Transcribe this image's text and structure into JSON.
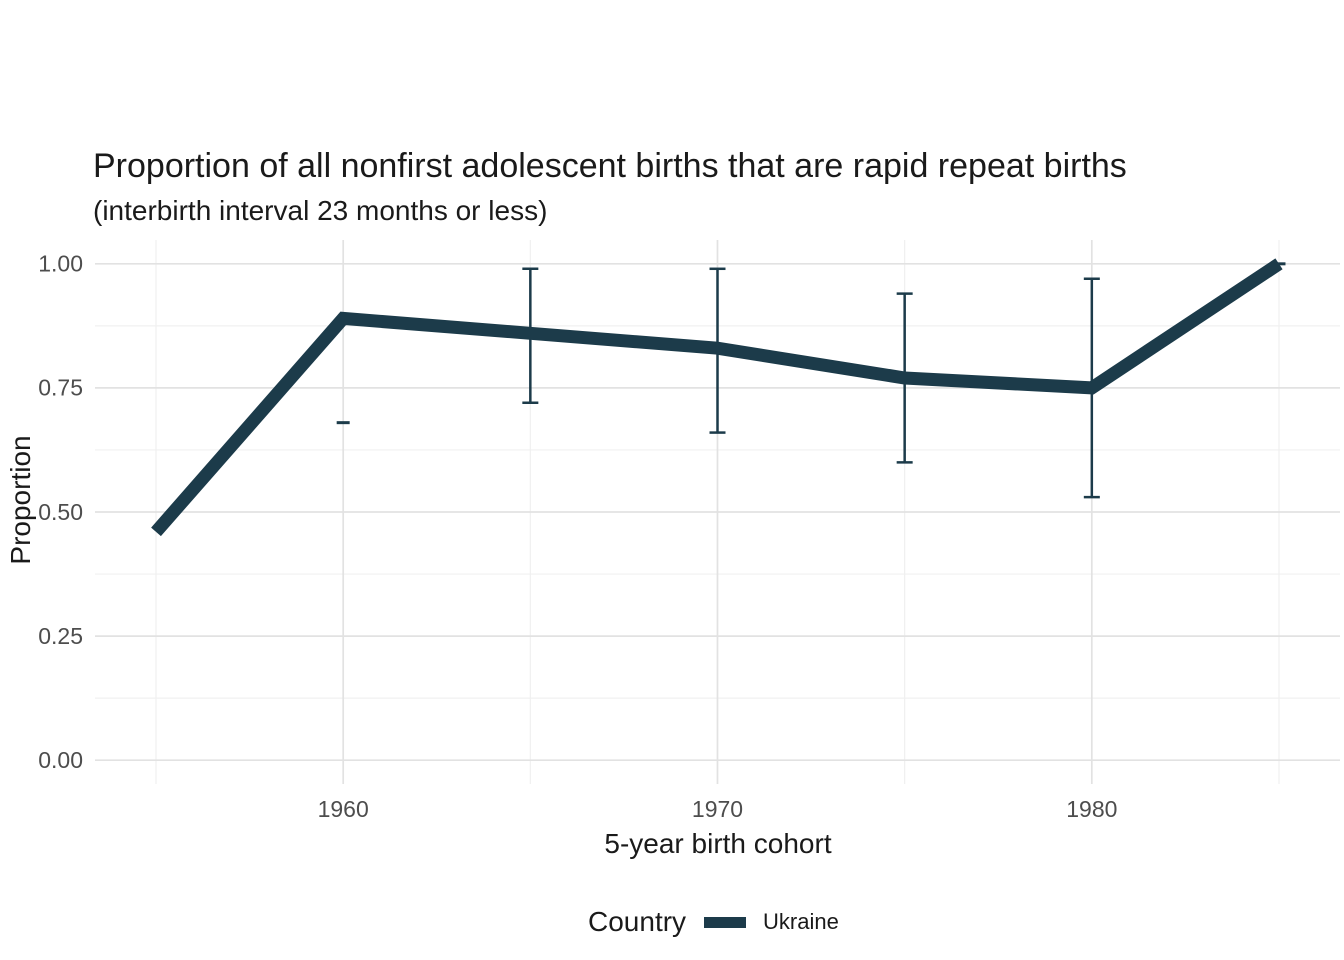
{
  "chart_data": {
    "type": "line",
    "title": "Proportion of all nonfirst adolescent births that are rapid repeat births",
    "subtitle": "(interbirth interval 23 months or less)",
    "xlabel": "5-year birth cohort",
    "ylabel": "Proportion",
    "legend": {
      "title": "Country",
      "position": "bottom",
      "items": [
        {
          "label": "Ukraine",
          "color": "#1C3B4A"
        }
      ]
    },
    "x": [
      1955,
      1960,
      1965,
      1970,
      1975,
      1980,
      1985
    ],
    "series": [
      {
        "name": "Ukraine",
        "values": [
          0.46,
          0.89,
          0.86,
          0.83,
          0.77,
          0.75,
          1.0
        ],
        "ci_low": [
          null,
          0.68,
          0.72,
          0.66,
          0.6,
          0.53,
          1.0
        ],
        "ci_high": [
          null,
          0.68,
          0.99,
          0.99,
          0.94,
          0.97,
          1.0
        ]
      }
    ],
    "xticks": [
      1960,
      1970,
      1980
    ],
    "xticks_minor": [
      1955,
      1965,
      1975,
      1985
    ],
    "yticks": [
      0,
      0.25,
      0.5,
      0.75,
      1
    ],
    "ytick_labels": [
      "0.00",
      "0.25",
      "0.50",
      "0.75",
      "1.00"
    ],
    "yticks_minor": [
      0.125,
      0.375,
      0.625,
      0.875
    ],
    "xlim": [
      1953.37,
      1986.63
    ],
    "ylim": [
      -0.048,
      1.048
    ],
    "grid": "major+minor"
  },
  "style": {
    "line_color": "#1C3B4A",
    "grid_major_color": "#E2E2E2",
    "grid_minor_color": "#F0F0F0",
    "tick_text_color": "#4D4D4D",
    "text_color": "#1A1A1A",
    "background": "#FFFFFF"
  }
}
